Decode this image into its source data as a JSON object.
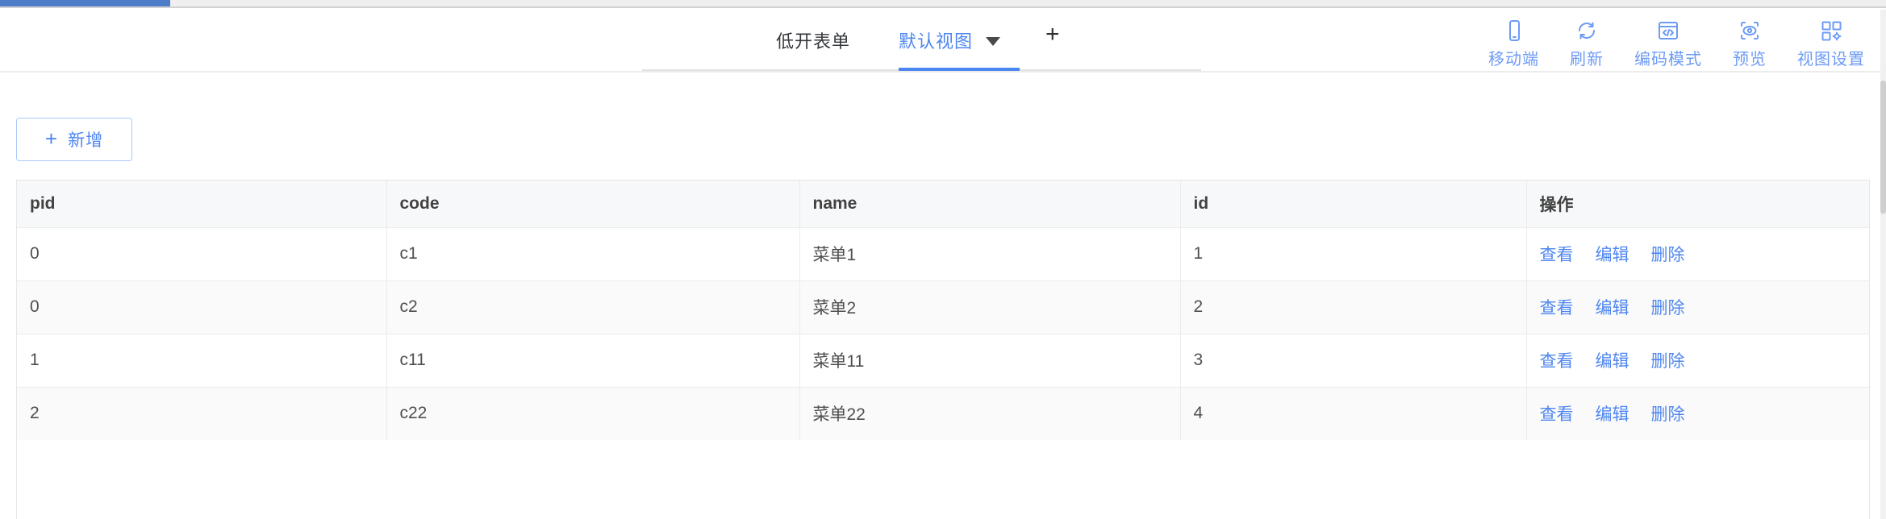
{
  "header": {
    "page_title": "低开表单",
    "active_view_tab": "默认视图",
    "add_view_label": "+",
    "toolbar": [
      {
        "name": "mobile",
        "icon": "mobile-icon",
        "label": "移动端"
      },
      {
        "name": "refresh",
        "icon": "refresh-icon",
        "label": "刷新"
      },
      {
        "name": "code-mode",
        "icon": "code-mode-icon",
        "label": "编码模式"
      },
      {
        "name": "preview",
        "icon": "preview-icon",
        "label": "预览"
      },
      {
        "name": "view-settings",
        "icon": "view-settings-icon",
        "label": "视图设置"
      }
    ]
  },
  "content": {
    "add_button": {
      "icon": "plus-icon",
      "label": "新增"
    },
    "table": {
      "columns": [
        "pid",
        "code",
        "name",
        "id",
        "操作"
      ],
      "rows": [
        {
          "pid": "0",
          "code": "c1",
          "name": "菜单1",
          "id": "1"
        },
        {
          "pid": "0",
          "code": "c2",
          "name": "菜单2",
          "id": "2"
        },
        {
          "pid": "1",
          "code": "c11",
          "name": "菜单11",
          "id": "3"
        },
        {
          "pid": "2",
          "code": "c22",
          "name": "菜单22",
          "id": "4"
        }
      ],
      "actions": [
        {
          "name": "view",
          "label": "查看"
        },
        {
          "name": "edit",
          "label": "编辑"
        },
        {
          "name": "delete",
          "label": "删除"
        }
      ]
    }
  },
  "colors": {
    "accent_blue": "#4e86f0",
    "toolbar_blue": "#6d9bf5",
    "progress_bar_blue": "#4d7cc8",
    "table_border": "#ebebeb",
    "header_row_bg": "#f7f8fa",
    "striped_row_bg": "#fafafa"
  }
}
